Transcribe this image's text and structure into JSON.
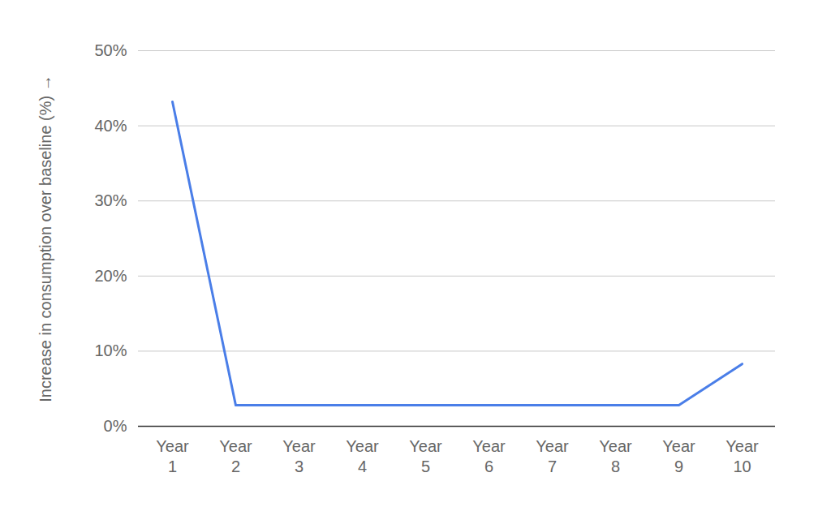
{
  "chart_data": {
    "type": "line",
    "y_label": "Increase in consumption over baseline (%)",
    "categories": [
      "Year 1",
      "Year 2",
      "Year 3",
      "Year 4",
      "Year 5",
      "Year 6",
      "Year 7",
      "Year 8",
      "Year 9",
      "Year 10"
    ],
    "values": [
      43.2,
      2.8,
      2.8,
      2.8,
      2.8,
      2.8,
      2.8,
      2.8,
      2.8,
      8.3
    ],
    "color": "#4a7ee8",
    "ylim": [
      0,
      50
    ],
    "yticks": [
      {
        "value": 0,
        "label": "0%"
      },
      {
        "value": 10,
        "label": "10%"
      },
      {
        "value": 20,
        "label": "20%"
      },
      {
        "value": 30,
        "label": "30%"
      },
      {
        "value": 40,
        "label": "40%"
      },
      {
        "value": 50,
        "label": "50%"
      }
    ],
    "grid": true,
    "marker": "none"
  }
}
